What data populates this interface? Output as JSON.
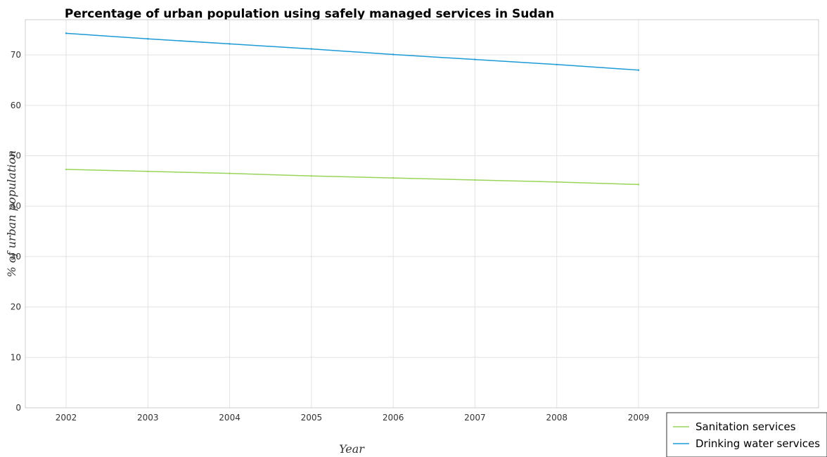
{
  "chart_data": {
    "type": "line",
    "title": "Percentage of urban population using safely managed services in Sudan",
    "xlabel": "Year",
    "ylabel": "% of urban population",
    "categories": [
      "2002",
      "2003",
      "2004",
      "2005",
      "2006",
      "2007",
      "2008",
      "2009"
    ],
    "y_ticks": [
      "0",
      "10",
      "20",
      "30",
      "40",
      "50",
      "60",
      "70"
    ],
    "ylim": [
      0,
      77
    ],
    "grid": true,
    "legend_position": "bottom-right",
    "series": [
      {
        "name": "Sanitation services",
        "color": "#99d45a",
        "values": [
          47.3,
          46.9,
          46.5,
          46.0,
          45.6,
          45.2,
          44.8,
          44.3
        ]
      },
      {
        "name": "Drinking water services",
        "color": "#1c9ad6",
        "values": [
          74.3,
          73.2,
          72.2,
          71.2,
          70.1,
          69.1,
          68.1,
          67.0
        ]
      }
    ]
  }
}
